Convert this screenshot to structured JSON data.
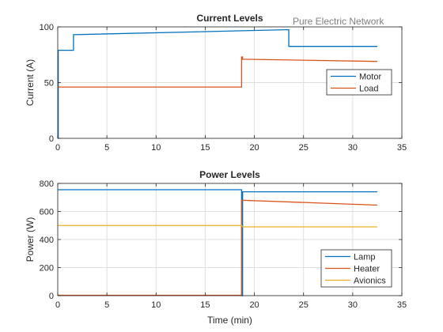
{
  "annotation": "Pure Electric Network",
  "chart_data": [
    {
      "type": "line",
      "title": "Current Levels",
      "xlabel": "",
      "ylabel": "Current (A)",
      "xlim": [
        0,
        35
      ],
      "ylim": [
        0,
        100
      ],
      "xticks": [
        0,
        5,
        10,
        15,
        20,
        25,
        30,
        35
      ],
      "yticks": [
        0,
        50,
        100
      ],
      "grid": true,
      "legend": "right",
      "series": [
        {
          "name": "Motor",
          "color": "#0072BD",
          "x": [
            0,
            0.05,
            0.05,
            1.6,
            1.6,
            23.5,
            23.5,
            32.5
          ],
          "y": [
            0,
            0,
            79,
            79,
            93,
            97.5,
            82.5,
            82.5
          ]
        },
        {
          "name": "Load",
          "color": "#D95319",
          "x": [
            0,
            18.7,
            18.7,
            18.8,
            18.8,
            32.5
          ],
          "y": [
            46,
            46,
            73,
            73,
            71,
            69
          ]
        }
      ]
    },
    {
      "type": "line",
      "title": "Power Levels",
      "xlabel": "Time (min)",
      "ylabel": "Power (W)",
      "xlim": [
        0,
        35
      ],
      "ylim": [
        0,
        800
      ],
      "xticks": [
        0,
        5,
        10,
        15,
        20,
        25,
        30,
        35
      ],
      "yticks": [
        0,
        200,
        400,
        600,
        800
      ],
      "grid": true,
      "legend": "bottom-right",
      "series": [
        {
          "name": "Lamp",
          "color": "#0072BD",
          "x": [
            0,
            18.7,
            18.7,
            18.8,
            18.8,
            32.5
          ],
          "y": [
            755,
            755,
            0,
            0,
            740,
            740
          ]
        },
        {
          "name": "Heater",
          "color": "#D95319",
          "x": [
            0,
            18.7,
            18.7,
            32.5
          ],
          "y": [
            3,
            3,
            680,
            645
          ]
        },
        {
          "name": "Avionics",
          "color": "#EDB120",
          "x": [
            0,
            18.7,
            18.8,
            32.5
          ],
          "y": [
            500,
            500,
            490,
            490
          ]
        }
      ]
    }
  ]
}
